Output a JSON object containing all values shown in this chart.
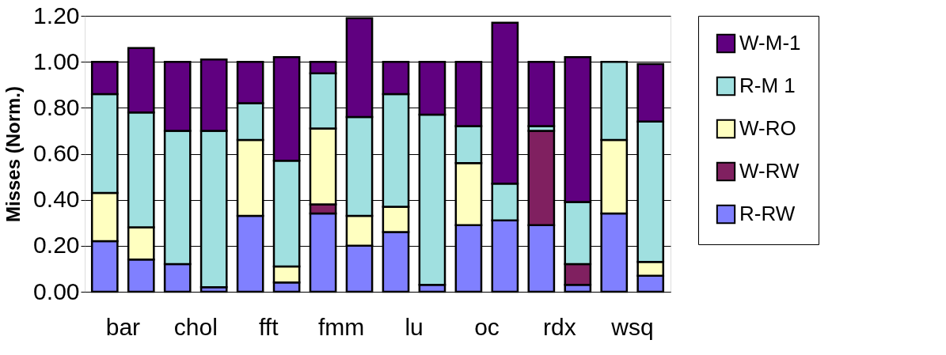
{
  "chart_data": {
    "type": "bar",
    "stacked": true,
    "ylabel": "Misses (Norm.)",
    "categories": [
      "bar",
      null,
      "chol",
      null,
      "fft",
      null,
      "fmm",
      null,
      "lu",
      null,
      "oc",
      null,
      "rdx",
      null,
      "wsq",
      null
    ],
    "series": [
      {
        "name": "R-RW",
        "color": "#8080ff",
        "values": [
          0.22,
          0.14,
          0.12,
          0.02,
          0.33,
          0.04,
          0.34,
          0.2,
          0.26,
          0.03,
          0.29,
          0.31,
          0.29,
          0.03,
          0.34,
          0.07
        ]
      },
      {
        "name": "W-RW",
        "color": "#802060",
        "values": [
          null,
          null,
          null,
          null,
          null,
          null,
          0.04,
          null,
          null,
          null,
          null,
          null,
          0.41,
          0.09,
          null,
          null
        ]
      },
      {
        "name": "W-RO",
        "color": "#ffffc0",
        "values": [
          0.21,
          0.14,
          null,
          null,
          0.33,
          0.07,
          0.33,
          0.13,
          0.11,
          null,
          0.27,
          null,
          null,
          null,
          0.32,
          0.06
        ]
      },
      {
        "name": "R-M 1",
        "color": "#a0e0e0",
        "values": [
          0.43,
          0.5,
          0.58,
          0.68,
          0.16,
          0.46,
          0.24,
          0.43,
          0.49,
          0.74,
          0.16,
          0.16,
          0.02,
          0.27,
          0.34,
          0.61
        ]
      },
      {
        "name": "W-M-1",
        "color": "#600080",
        "values": [
          0.14,
          0.28,
          0.3,
          0.31,
          0.18,
          0.45,
          0.05,
          0.43,
          0.14,
          0.23,
          0.28,
          0.7,
          0.28,
          0.63,
          null,
          0.25
        ]
      }
    ],
    "ylim": [
      0,
      1.2
    ],
    "yticks": [
      {
        "value": 0,
        "label": "0.00"
      },
      {
        "value": 0.2,
        "label": "0.20"
      },
      {
        "value": 0.4,
        "label": "0.40"
      },
      {
        "value": 0.6,
        "label": "0.60"
      },
      {
        "value": 0.8,
        "label": "0.80"
      },
      {
        "value": 1,
        "label": "1.00"
      },
      {
        "value": 1.2,
        "label": "1.20"
      }
    ],
    "grid": "y",
    "legend": "right"
  }
}
